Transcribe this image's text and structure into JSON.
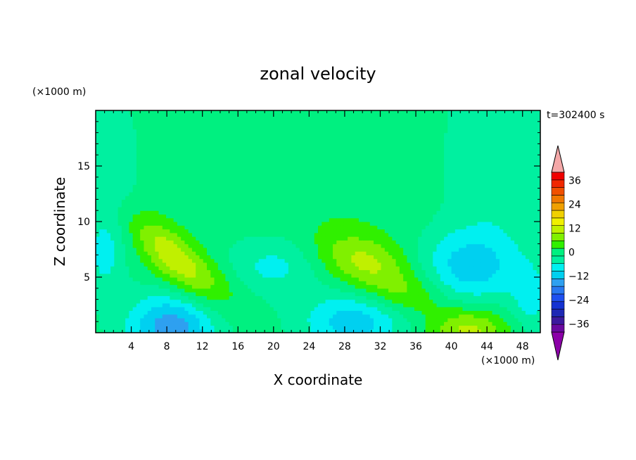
{
  "chart_data": {
    "type": "heatmap",
    "title": "zonal velocity",
    "xlabel": "X coordinate",
    "ylabel": "Z coordinate",
    "x_unit": "(×1000 m)",
    "y_unit": "(×1000 m)",
    "time_label": "t=302400 s",
    "xlim": [
      0,
      50
    ],
    "ylim": [
      0,
      20
    ],
    "x_ticks": [
      4,
      8,
      12,
      16,
      20,
      24,
      28,
      32,
      36,
      40,
      44,
      48
    ],
    "y_ticks": [
      5,
      10,
      15
    ],
    "colorbar": {
      "levels": [
        -40,
        -36,
        -32,
        -28,
        -24,
        -20,
        -16,
        -12,
        -8,
        -4,
        0,
        4,
        8,
        12,
        16,
        20,
        24,
        28,
        32,
        36,
        40
      ],
      "colors": [
        "#6a0aa0",
        "#3c1a9e",
        "#1e28b4",
        "#1432d2",
        "#1e50f0",
        "#2878f0",
        "#2ea0f0",
        "#00d0f0",
        "#00f0f0",
        "#00f0a0",
        "#00f080",
        "#30f000",
        "#80f000",
        "#c0f000",
        "#f0f000",
        "#f0d000",
        "#f0a000",
        "#f07800",
        "#f05000",
        "#f02800",
        "#f00000"
      ],
      "under_color": "#8c00a8",
      "over_color": "#f4a8a8",
      "tick_labels": [
        "36",
        "24",
        "12",
        "0",
        "−12",
        "−24",
        "−36"
      ],
      "tick_values": [
        36,
        24,
        12,
        0,
        -12,
        -24,
        -36
      ]
    },
    "field_features": [
      {
        "x": 8,
        "z": 7.5,
        "value": 11,
        "sx": 2.2,
        "sz": 2.2,
        "tilt": 0.9
      },
      {
        "x": 12,
        "z": 4.5,
        "value": 7,
        "sx": 3,
        "sz": 2,
        "tilt": 0.8
      },
      {
        "x": 30,
        "z": 6.5,
        "value": 11,
        "sx": 3.5,
        "sz": 1.8,
        "tilt": 0.6
      },
      {
        "x": 35,
        "z": 3.5,
        "value": 7,
        "sx": 3,
        "sz": 1.5,
        "tilt": 0.5
      },
      {
        "x": 8.5,
        "z": 0.5,
        "value": -16,
        "sx": 3.5,
        "sz": 2.2,
        "tilt": 0
      },
      {
        "x": 20,
        "z": 6,
        "value": -7,
        "sx": 4,
        "sz": 2,
        "tilt": 0
      },
      {
        "x": 29,
        "z": 1,
        "value": -12,
        "sx": 4,
        "sz": 1.8,
        "tilt": 0
      },
      {
        "x": 42,
        "z": 6,
        "value": -11,
        "sx": 4,
        "sz": 2.3,
        "tilt": 0
      },
      {
        "x": 42,
        "z": 0.3,
        "value": 12,
        "sx": 3,
        "sz": 1.4,
        "tilt": 0
      },
      {
        "x": 1,
        "z": 7,
        "value": -6,
        "sx": 1.5,
        "sz": 2.5,
        "tilt": 0
      },
      {
        "x": 49,
        "z": 3,
        "value": -7,
        "sx": 1.5,
        "sz": 2,
        "tilt": 0
      },
      {
        "x": 45,
        "z": 15,
        "value": -5,
        "sx": 4.5,
        "sz": 6,
        "tilt": 0
      },
      {
        "x": 1.5,
        "z": 15,
        "value": -4,
        "sx": 2.5,
        "sz": 5,
        "tilt": 0
      },
      {
        "x": 25,
        "z": 14,
        "value": 2,
        "sx": 10,
        "sz": 5,
        "tilt": 0
      }
    ]
  }
}
